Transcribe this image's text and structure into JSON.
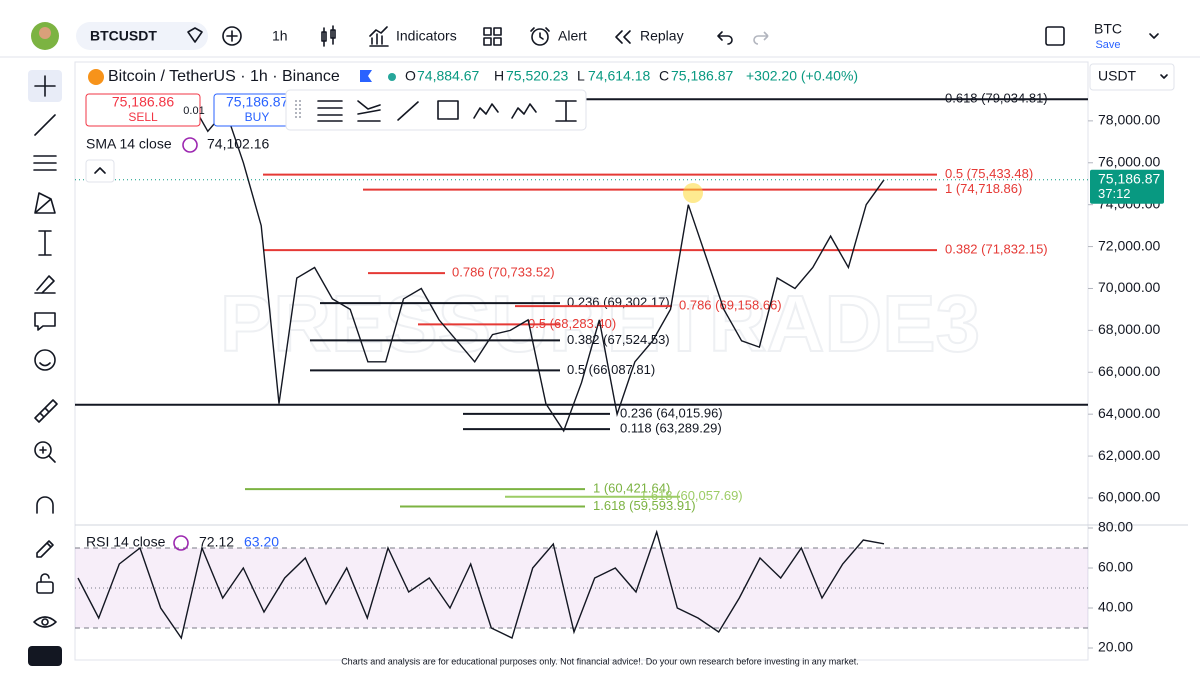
{
  "toolbar": {
    "symbol": "BTCUSDT",
    "interval": "1h",
    "indicators": "Indicators",
    "alert": "Alert",
    "replay": "Replay",
    "layout_name": "BTC",
    "save": "Save"
  },
  "legend": {
    "title": "Bitcoin / TetherUS · 1h · Binance",
    "open_label": "O",
    "open": "74,884.67",
    "high_label": "H",
    "high": "75,520.23",
    "low_label": "L",
    "low": "74,614.18",
    "close_label": "C",
    "close": "75,186.87",
    "change": "+302.20 (+0.40%)"
  },
  "order": {
    "sell_price": "75,186.86",
    "sell": "SELL",
    "quantity": "0.01",
    "buy_price": "75,186.87",
    "buy": "BUY"
  },
  "sma": {
    "label": "SMA 14 close",
    "value": "74,102.16"
  },
  "currency": "USDT",
  "watermark": "PRESSURETRADE3",
  "price_pane": {
    "ylim": [
      58710,
      80810
    ],
    "yticks": [
      {
        "value": 60000,
        "label": "60,000.00"
      },
      {
        "value": 62000,
        "label": "62,000.00"
      },
      {
        "value": 64000,
        "label": "64,000.00"
      },
      {
        "value": 66000,
        "label": "66,000.00"
      },
      {
        "value": 68000,
        "label": "68,000.00"
      },
      {
        "value": 70000,
        "label": "70,000.00"
      },
      {
        "value": 72000,
        "label": "72,000.00"
      },
      {
        "value": 74000,
        "label": "74,000.00"
      },
      {
        "value": 76000,
        "label": "76,000.00"
      },
      {
        "value": 78000,
        "label": "78,000.00"
      }
    ],
    "last_price": {
      "value": 75186.87,
      "label": "75,186.87"
    },
    "countdown": "37:12",
    "color": "#131722",
    "values": [
      79000,
      77500,
      78500,
      76000,
      73000,
      64500,
      70500,
      71000,
      69500,
      69000,
      66500,
      66500,
      69500,
      70000,
      68500,
      67500,
      66500,
      67800,
      68000,
      68500,
      64500,
      63200,
      65500,
      68500,
      64000,
      66500,
      67500,
      69000,
      74000,
      71500,
      69000,
      67500,
      67200,
      70500,
      70000,
      71000,
      72500,
      71000,
      74000,
      75186.87
    ],
    "support_line": 64450,
    "fib_levels": [
      {
        "label": "0.618 (79,034.81)",
        "value": 79034.81,
        "color": "#131722"
      },
      {
        "label": "0.5 (75,433.48)",
        "value": 75433.48,
        "color": "#e53935"
      },
      {
        "label": "1 (74,718.86)",
        "value": 74718.86,
        "color": "#e53935"
      },
      {
        "label": "0.382 (71,832.15)",
        "value": 71832.15,
        "color": "#e53935"
      },
      {
        "label": "0.786 (70,733.52)",
        "value": 70733.52,
        "color": "#e53935"
      },
      {
        "label": "0.236 (69,302.17)",
        "value": 69302.17,
        "color": "#131722"
      },
      {
        "label": "0.786 (69,158.66)",
        "value": 69158.66,
        "color": "#e53935"
      },
      {
        "label": "0.5 (68,283.40)",
        "value": 68283.4,
        "color": "#e53935"
      },
      {
        "label": "0.382 (67,524.53)",
        "value": 67524.53,
        "color": "#131722"
      },
      {
        "label": "0.5 (66,087.81)",
        "value": 66087.81,
        "color": "#131722"
      },
      {
        "label": "0.236 (64,015.96)",
        "value": 64015.96,
        "color": "#131722"
      },
      {
        "label": "0.118 (63,289.29)",
        "value": 63289.29,
        "color": "#131722"
      },
      {
        "label": "1 (60,421.64)",
        "value": 60421.64,
        "color": "#7cb342"
      },
      {
        "label": "1.618 (60,057.69)",
        "value": 60057.69,
        "color": "#9ccc65"
      },
      {
        "label": "1.618 (59,593.91)",
        "value": 59593.91,
        "color": "#7cb342"
      }
    ]
  },
  "rsi_pane": {
    "title": "RSI 14 close",
    "value": "72.12",
    "ma_value": "63.20",
    "ylim": [
      14,
      81.5
    ],
    "yticks": [
      {
        "value": 20,
        "label": "20.00"
      },
      {
        "value": 40,
        "label": "40.00"
      },
      {
        "value": 60,
        "label": "60.00"
      },
      {
        "value": 80,
        "label": "80.00"
      }
    ],
    "bands": [
      30,
      50,
      70
    ],
    "color": "#131722",
    "values": [
      55,
      35,
      62,
      70,
      40,
      25,
      70,
      45,
      60,
      38,
      55,
      65,
      42,
      60,
      35,
      70,
      48,
      55,
      40,
      62,
      30,
      25,
      60,
      72,
      28,
      55,
      60,
      48,
      78,
      40,
      35,
      28,
      45,
      65,
      55,
      70,
      45,
      62,
      74,
      72.12
    ]
  },
  "footer": "Charts and analysis are for educational purposes only. Not financial advice!. Do your own research before investing in any market."
}
